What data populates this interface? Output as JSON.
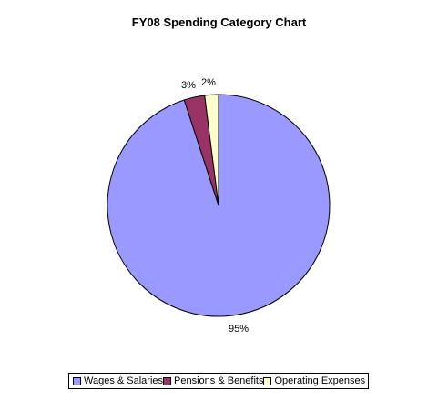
{
  "chart_data": {
    "type": "pie",
    "title": "FY08 Spending Category Chart",
    "slices": [
      {
        "name": "Wages & Salaries",
        "value": 95,
        "label": "95%",
        "color": "#9999ff"
      },
      {
        "name": "Pensions & Benefits",
        "value": 3,
        "label": "3%",
        "color": "#993366"
      },
      {
        "name": "Operating Expenses",
        "value": 2,
        "label": "2%",
        "color": "#ffffcc"
      }
    ],
    "legend_position": "bottom"
  }
}
